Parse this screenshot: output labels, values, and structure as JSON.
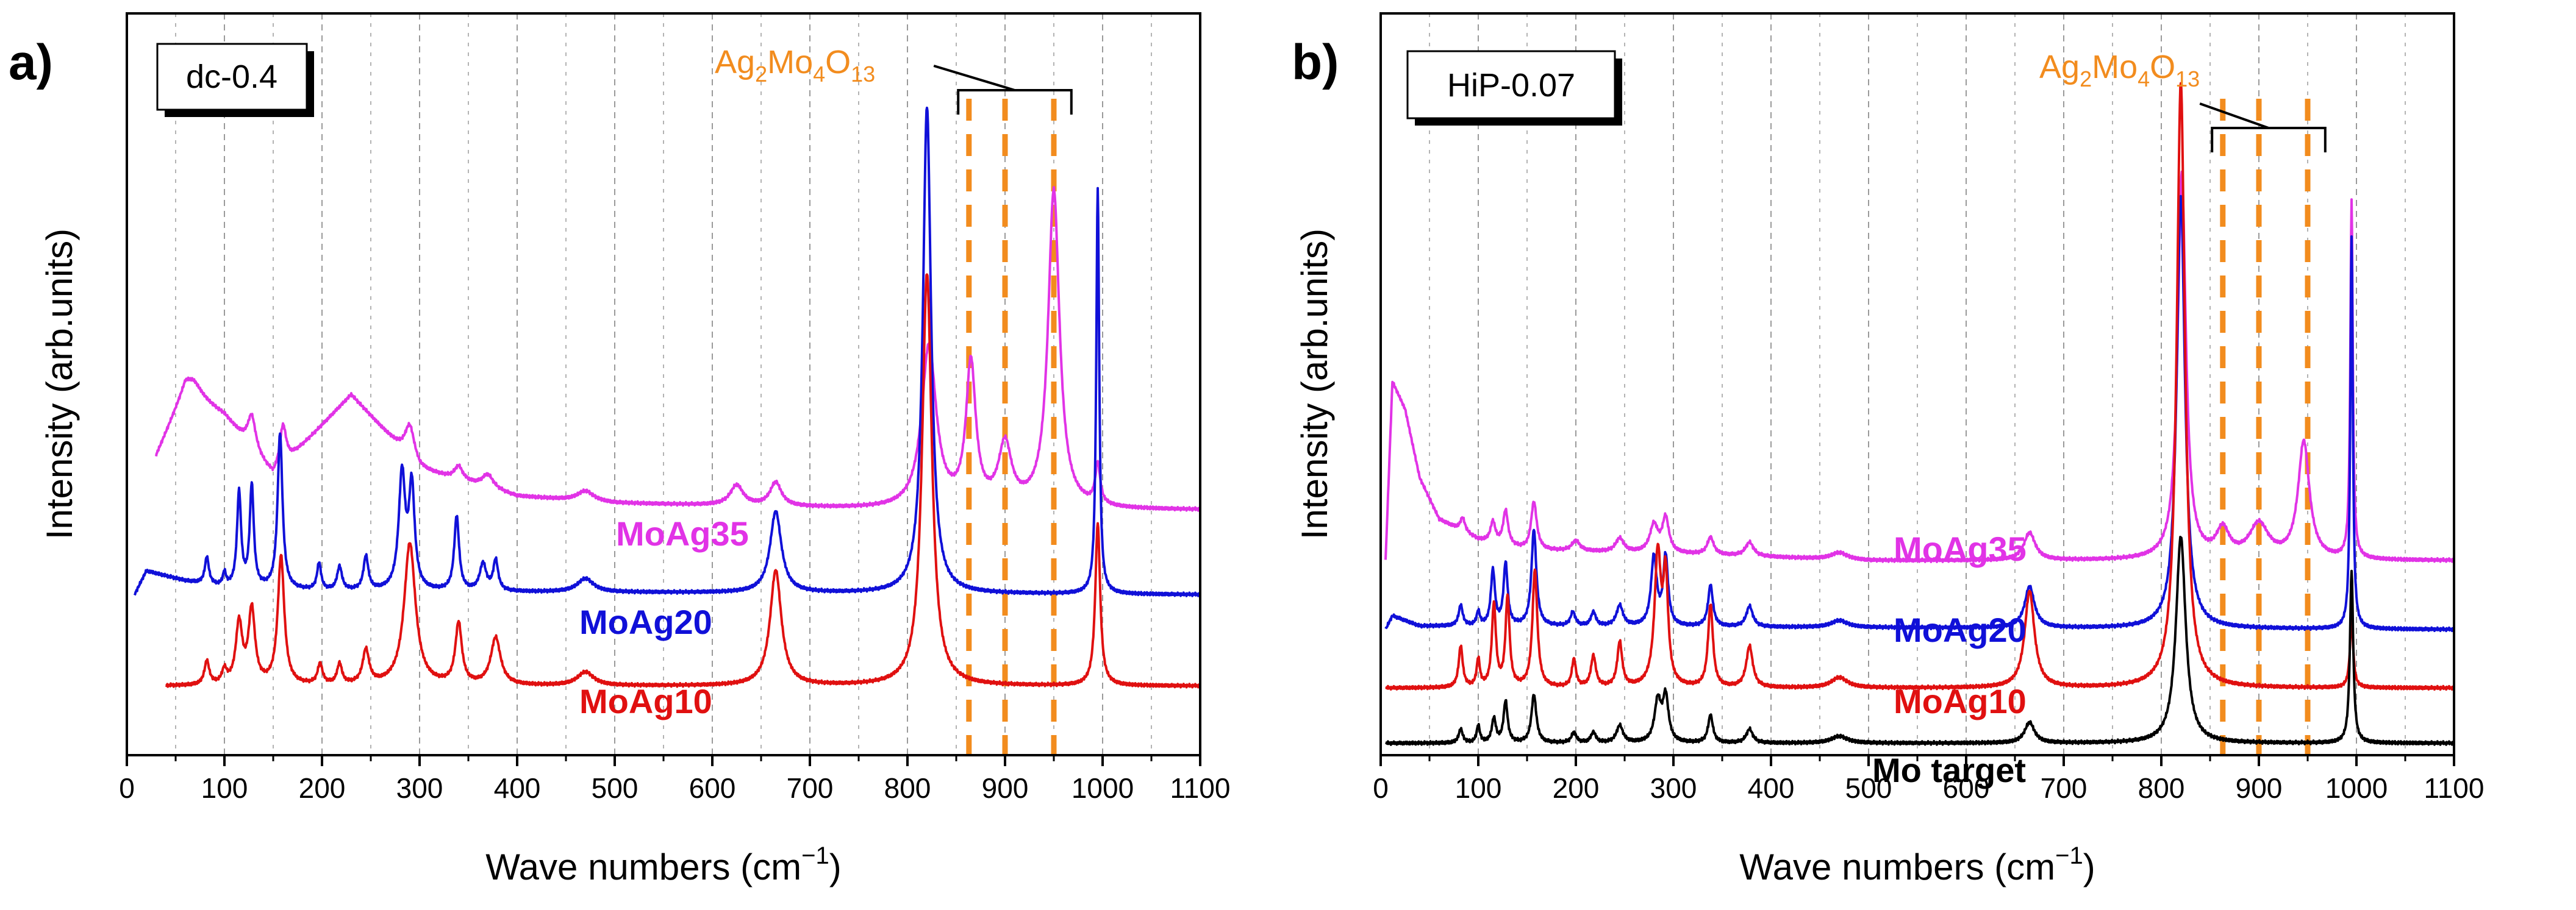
{
  "figure": {
    "x_axis_label": "Wave numbers (cm",
    "x_axis_unit_sup": "−1",
    "x_axis_label_close": ")",
    "y_axis_label": "Intensity (arb.units)",
    "colors": {
      "MoAg35": "#E133E6",
      "MoAg20": "#1010D8",
      "MoAg10": "#E01010",
      "Mo target": "#000000",
      "phase": "#F28C1E",
      "grid": "#9a9a9a"
    }
  },
  "chart_data": [
    {
      "type": "line",
      "panel_label": "a)",
      "sample_label": "dc-0.4",
      "phase_annotation": {
        "label_main": "Ag",
        "sub1": "2",
        "label_mid": "Mo",
        "sub2": "4",
        "label_o": "O",
        "sub3": "13",
        "line_positions_cm1": [
          863,
          900,
          950
        ],
        "bracket_range_cm1": [
          852,
          968
        ]
      },
      "xlim": [
        0,
        1100
      ],
      "x_ticks": [
        0,
        100,
        200,
        300,
        400,
        500,
        600,
        700,
        800,
        900,
        1000,
        1100
      ],
      "grid": "vertical dashed at every 50 cm-1",
      "xlabel": "Wave numbers (cm−1)",
      "ylabel": "Intensity (arb.units)",
      "ylim": [
        0,
        1
      ],
      "series": [
        {
          "name": "MoAg35",
          "x_start": 30,
          "baseline": 0.3,
          "background": [
            [
              30,
              0.08
            ],
            [
              60,
              0.18
            ],
            [
              100,
              0.14
            ],
            [
              150,
              0.05
            ],
            [
              230,
              0.17
            ],
            [
              300,
              0.06
            ],
            [
              400,
              0.02
            ],
            [
              500,
              0.01
            ],
            [
              800,
              0.0
            ],
            [
              1100,
              0.0
            ]
          ],
          "peaks": [
            [
              68,
              0.02,
              10
            ],
            [
              128,
              0.05,
              5
            ],
            [
              160,
              0.06,
              4
            ],
            [
              290,
              0.05,
              6
            ],
            [
              340,
              0.02,
              5
            ],
            [
              370,
              0.02,
              7
            ],
            [
              470,
              0.015,
              10
            ],
            [
              625,
              0.03,
              8
            ],
            [
              665,
              0.035,
              7
            ],
            [
              822,
              0.24,
              9
            ],
            [
              865,
              0.21,
              6
            ],
            [
              900,
              0.09,
              8
            ],
            [
              950,
              0.47,
              7
            ],
            [
              995,
              0.06,
              3
            ]
          ]
        },
        {
          "name": "MoAg20",
          "x_start": 8,
          "baseline": 0.175,
          "background": [
            [
              8,
              0.0
            ],
            [
              20,
              0.035
            ],
            [
              60,
              0.02
            ],
            [
              100,
              0.01
            ],
            [
              200,
              0.005
            ],
            [
              1100,
              0.0
            ]
          ],
          "peaks": [
            [
              82,
              0.04,
              2.5
            ],
            [
              100,
              0.02,
              2
            ],
            [
              115,
              0.14,
              2.5
            ],
            [
              128,
              0.15,
              2.5
            ],
            [
              157,
              0.23,
              3
            ],
            [
              197,
              0.04,
              2.5
            ],
            [
              218,
              0.035,
              3
            ],
            [
              245,
              0.05,
              3
            ],
            [
              282,
              0.17,
              4
            ],
            [
              292,
              0.15,
              3.5
            ],
            [
              338,
              0.11,
              3
            ],
            [
              365,
              0.04,
              4
            ],
            [
              378,
              0.045,
              3
            ],
            [
              470,
              0.02,
              10
            ],
            [
              665,
              0.12,
              7
            ],
            [
              820,
              0.72,
              5
            ],
            [
              995,
              0.6,
              1.8
            ]
          ]
        },
        {
          "name": "MoAg10",
          "x_start": 40,
          "baseline": 0.04,
          "background": [
            [
              40,
              0.0
            ],
            [
              1100,
              0.0
            ]
          ],
          "peaks": [
            [
              82,
              0.035,
              3
            ],
            [
              100,
              0.02,
              3
            ],
            [
              115,
              0.09,
              4
            ],
            [
              128,
              0.11,
              4
            ],
            [
              158,
              0.19,
              4
            ],
            [
              198,
              0.03,
              3
            ],
            [
              218,
              0.03,
              3
            ],
            [
              245,
              0.05,
              4
            ],
            [
              290,
              0.21,
              7
            ],
            [
              340,
              0.09,
              4
            ],
            [
              378,
              0.07,
              6
            ],
            [
              470,
              0.02,
              10
            ],
            [
              665,
              0.17,
              7
            ],
            [
              820,
              0.61,
              6
            ],
            [
              995,
              0.24,
              3
            ]
          ]
        }
      ]
    },
    {
      "type": "line",
      "panel_label": "b)",
      "sample_label": "HiP-0.07",
      "phase_annotation": {
        "label_main": "Ag",
        "sub1": "2",
        "label_mid": "Mo",
        "sub2": "4",
        "label_o": "O",
        "sub3": "13",
        "line_positions_cm1": [
          863,
          900,
          950
        ],
        "bracket_range_cm1": [
          852,
          968
        ]
      },
      "xlim": [
        0,
        1100
      ],
      "x_ticks": [
        0,
        100,
        200,
        300,
        400,
        500,
        600,
        700,
        800,
        900,
        1000,
        1100
      ],
      "grid": "vertical dashed at every 50 cm-1",
      "xlabel": "Wave numbers (cm−1)",
      "ylabel": "Intensity (arb.units)",
      "ylim": [
        0,
        1
      ],
      "series": [
        {
          "name": "MoAg35",
          "x_start": 5,
          "baseline": 0.27,
          "background": [
            [
              5,
              0.0
            ],
            [
              12,
              0.26
            ],
            [
              25,
              0.22
            ],
            [
              40,
              0.12
            ],
            [
              60,
              0.06
            ],
            [
              100,
              0.03
            ],
            [
              150,
              0.015
            ],
            [
              300,
              0.01
            ],
            [
              500,
              0.0
            ],
            [
              1100,
              0.0
            ]
          ],
          "peaks": [
            [
              84,
              0.02,
              3
            ],
            [
              115,
              0.03,
              3
            ],
            [
              128,
              0.05,
              3
            ],
            [
              157,
              0.07,
              3.5
            ],
            [
              200,
              0.015,
              5
            ],
            [
              245,
              0.02,
              5
            ],
            [
              280,
              0.04,
              5
            ],
            [
              292,
              0.05,
              4
            ],
            [
              338,
              0.025,
              4
            ],
            [
              378,
              0.02,
              5
            ],
            [
              470,
              0.01,
              10
            ],
            [
              665,
              0.04,
              7
            ],
            [
              821,
              0.56,
              5
            ],
            [
              863,
              0.04,
              8
            ],
            [
              900,
              0.05,
              12
            ],
            [
              946,
              0.17,
              7
            ],
            [
              995,
              0.52,
              1.5
            ]
          ]
        },
        {
          "name": "MoAg20",
          "x_start": 5,
          "baseline": 0.17,
          "background": [
            [
              5,
              0.0
            ],
            [
              12,
              0.02
            ],
            [
              40,
              0.005
            ],
            [
              1100,
              0.0
            ]
          ],
          "peaks": [
            [
              82,
              0.03,
              2.5
            ],
            [
              100,
              0.02,
              2
            ],
            [
              115,
              0.08,
              2.5
            ],
            [
              128,
              0.09,
              2.5
            ],
            [
              157,
              0.14,
              3
            ],
            [
              197,
              0.02,
              3
            ],
            [
              218,
              0.02,
              3
            ],
            [
              245,
              0.03,
              4
            ],
            [
              280,
              0.1,
              3.5
            ],
            [
              292,
              0.1,
              3
            ],
            [
              338,
              0.06,
              3
            ],
            [
              378,
              0.03,
              4
            ],
            [
              470,
              0.01,
              10
            ],
            [
              665,
              0.06,
              6
            ],
            [
              820,
              0.63,
              5
            ],
            [
              995,
              0.57,
              1.5
            ]
          ]
        },
        {
          "name": "MoAg10",
          "x_start": 5,
          "baseline": 0.085,
          "background": [
            [
              5,
              0.0
            ],
            [
              1100,
              0.0
            ]
          ],
          "peaks": [
            [
              82,
              0.06,
              2.5
            ],
            [
              100,
              0.04,
              2
            ],
            [
              116,
              0.12,
              2.5
            ],
            [
              130,
              0.13,
              2.5
            ],
            [
              158,
              0.17,
              3
            ],
            [
              198,
              0.04,
              2.5
            ],
            [
              218,
              0.045,
              3
            ],
            [
              245,
              0.065,
              3
            ],
            [
              284,
              0.19,
              4
            ],
            [
              292,
              0.15,
              3
            ],
            [
              338,
              0.12,
              3
            ],
            [
              378,
              0.06,
              4
            ],
            [
              470,
              0.015,
              10
            ],
            [
              665,
              0.14,
              6
            ],
            [
              820,
              0.88,
              5
            ],
            [
              995,
              0.1,
              2
            ]
          ]
        },
        {
          "name": "Mo target",
          "x_start": 5,
          "baseline": 0.005,
          "background": [
            [
              5,
              0.0
            ],
            [
              1100,
              0.0
            ]
          ],
          "peaks": [
            [
              82,
              0.02,
              2.5
            ],
            [
              100,
              0.025,
              2
            ],
            [
              116,
              0.035,
              2.5
            ],
            [
              128,
              0.06,
              2.5
            ],
            [
              157,
              0.07,
              3
            ],
            [
              198,
              0.015,
              3
            ],
            [
              218,
              0.015,
              3
            ],
            [
              245,
              0.025,
              4
            ],
            [
              284,
              0.06,
              4
            ],
            [
              292,
              0.065,
              3.5
            ],
            [
              338,
              0.04,
              3
            ],
            [
              378,
              0.02,
              4
            ],
            [
              470,
              0.01,
              10
            ],
            [
              665,
              0.03,
              6
            ],
            [
              820,
              0.3,
              6
            ],
            [
              995,
              0.25,
              2
            ]
          ]
        }
      ]
    }
  ]
}
